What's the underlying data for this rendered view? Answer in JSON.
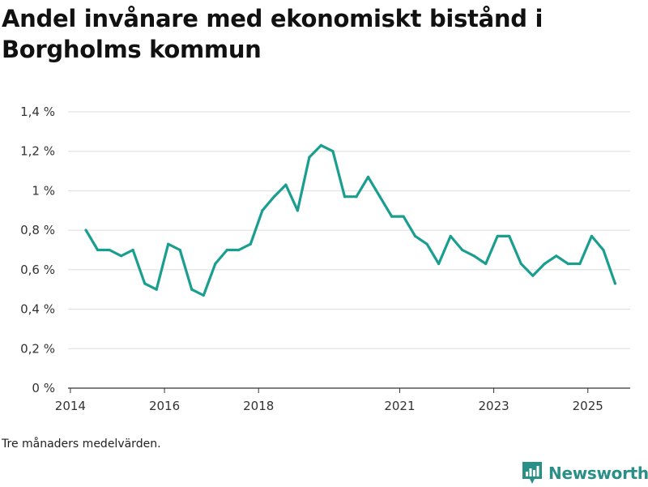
{
  "chart_data": {
    "type": "line",
    "title": "Andel invånare med ekonomiskt bistånd i Borgholms kommun",
    "note": "Tre månaders medelvärden.",
    "xlabel": "",
    "ylabel": "",
    "x_range": [
      2013.95,
      2025.9
    ],
    "ylim": [
      0,
      1.4
    ],
    "y_ticks": [
      0,
      0.2,
      0.4,
      0.6,
      0.8,
      1.0,
      1.2,
      1.4
    ],
    "y_tick_labels": [
      "0 %",
      "0,2 %",
      "0,4 %",
      "0,6 %",
      "0,8 %",
      "1 %",
      "1,2 %",
      "1,4 %"
    ],
    "x_ticks": [
      2014,
      2016,
      2018,
      2021,
      2023,
      2025
    ],
    "x_tick_labels": [
      "2014",
      "2016",
      "2018",
      "2021",
      "2023",
      "2025"
    ],
    "grid": true,
    "line_color": "#1a9e8f",
    "series": [
      {
        "name": "Andel invånare med ekonomiskt bistånd",
        "x": [
          2014.33,
          2014.58,
          2014.83,
          2015.08,
          2015.33,
          2015.58,
          2015.83,
          2016.08,
          2016.33,
          2016.58,
          2016.83,
          2017.08,
          2017.33,
          2017.58,
          2017.83,
          2018.08,
          2018.33,
          2018.58,
          2018.83,
          2019.08,
          2019.33,
          2019.58,
          2019.83,
          2020.08,
          2020.33,
          2020.58,
          2020.83,
          2021.08,
          2021.33,
          2021.58,
          2021.83,
          2022.08,
          2022.33,
          2022.58,
          2022.83,
          2023.08,
          2023.33,
          2023.58,
          2023.83,
          2024.08,
          2024.33,
          2024.58,
          2024.83,
          2025.08,
          2025.33,
          2025.58
        ],
        "values": [
          0.8,
          0.7,
          0.7,
          0.67,
          0.7,
          0.53,
          0.5,
          0.73,
          0.7,
          0.5,
          0.47,
          0.63,
          0.7,
          0.7,
          0.73,
          0.9,
          0.97,
          1.03,
          0.9,
          1.17,
          1.23,
          1.2,
          0.97,
          0.97,
          1.07,
          0.97,
          0.87,
          0.87,
          0.77,
          0.73,
          0.63,
          0.77,
          0.7,
          0.67,
          0.63,
          0.77,
          0.77,
          0.63,
          0.57,
          0.63,
          0.67,
          0.63,
          0.63,
          0.77,
          0.7,
          0.53
        ]
      }
    ]
  },
  "brand": {
    "name": "Newsworthy",
    "color": "#2a8f87"
  }
}
